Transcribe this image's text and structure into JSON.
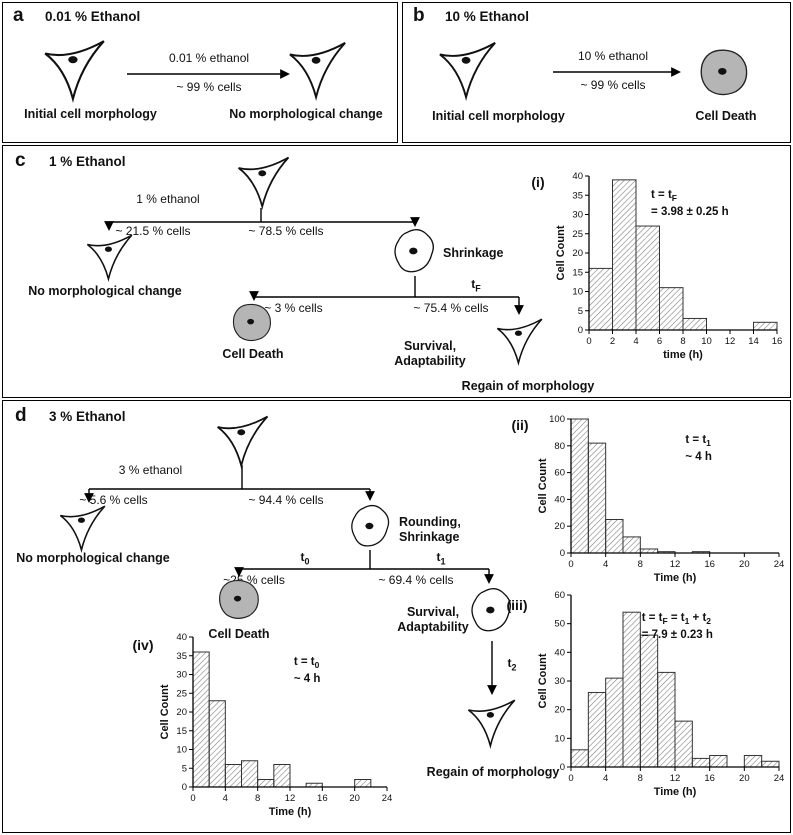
{
  "colors": {
    "dead_cell_fill": "#b5b5b5",
    "cell_outline": "#111111",
    "accent": "#000000"
  },
  "panels": {
    "a": {
      "label": "a",
      "title": "0.01 % Ethanol",
      "arrow_label_top": "0.01 % ethanol",
      "arrow_label_bottom": "~ 99 % cells",
      "caption_left": "Initial cell morphology",
      "caption_right": "No morphological change"
    },
    "b": {
      "label": "b",
      "title": "10 % Ethanol",
      "arrow_label_top": "10 % ethanol",
      "arrow_label_bottom": "~ 99 % cells",
      "caption_left": "Initial cell morphology",
      "caption_right": "Cell Death"
    },
    "c": {
      "label": "c",
      "title": "1 % Ethanol",
      "branch_label": "1 % ethanol",
      "left_pct": "~ 21.5 % cells",
      "right_pct": "~ 78.5 % cells",
      "caption_no_change": "No morphological change",
      "shrinkage_label": "Shrinkage",
      "tf": {
        "pre": "t",
        "sub": "F"
      },
      "death_pct": "~ 3 % cells",
      "survival_pct": "~ 75.4 % cells",
      "caption_death": "Cell Death",
      "survival_line1": "Survival,",
      "survival_line2": "Adaptability",
      "caption_regain": "Regain of morphology",
      "hist_tag": "(i)"
    },
    "d": {
      "label": "d",
      "title": "3 % Ethanol",
      "branch_label": "3 % ethanol",
      "left_pct": "~ 5.6 % cells",
      "right_pct": "~ 94.4 % cells",
      "caption_no_change": "No morphological change",
      "rounding_line1": "Rounding,",
      "rounding_line2": "Shrinkage",
      "t0": {
        "pre": "t",
        "sub": "0"
      },
      "t1": {
        "pre": "t",
        "sub": "1"
      },
      "t2": {
        "pre": "t",
        "sub": "2"
      },
      "death_pct": "~25 % cells",
      "survival_pct": "~ 69.4 % cells",
      "caption_death": "Cell Death",
      "survival_line1": "Survival,",
      "survival_line2": "Adaptability",
      "caption_regain": "Regain of morphology",
      "hist_tag_ii": "(ii)",
      "hist_tag_iii": "(iii)",
      "hist_tag_iv": "(iv)"
    }
  },
  "chart_data": [
    {
      "id": "i",
      "type": "bar",
      "xlabel": "time (h)",
      "ylabel": "Cell Count",
      "xlim": [
        0,
        16
      ],
      "xtick_step": 2,
      "ylim": [
        0,
        40
      ],
      "ytick_step": 5,
      "bin_width": 2,
      "bin_starts": [
        0,
        2,
        4,
        6,
        8,
        10,
        12,
        14
      ],
      "values": [
        16,
        39,
        27,
        11,
        3,
        0,
        0,
        2
      ],
      "ann_x": 0.33,
      "ann_y": 22,
      "annotation": [
        [
          {
            "t": "t = t"
          },
          {
            "t": "F",
            "sub": true
          }
        ],
        [
          {
            "t": "= 3.98 ± 0.25 h"
          }
        ]
      ]
    },
    {
      "id": "ii",
      "type": "bar",
      "xlabel": "Time (h)",
      "ylabel": "Cell Count",
      "xlim": [
        0,
        24
      ],
      "xtick_step": 4,
      "ylim": [
        0,
        100
      ],
      "ytick_step": 20,
      "bin_width": 2,
      "bin_starts": [
        0,
        2,
        4,
        6,
        8,
        10,
        12,
        14,
        16,
        18,
        20,
        22
      ],
      "values": [
        100,
        82,
        25,
        12,
        3,
        1,
        0,
        1,
        0,
        0,
        0,
        0
      ],
      "ann_x": 0.55,
      "ann_y": 24,
      "annotation": [
        [
          {
            "t": "t = t"
          },
          {
            "t": "1",
            "sub": true
          }
        ],
        [
          {
            "t": "~ 4 h"
          }
        ]
      ]
    },
    {
      "id": "iii",
      "type": "bar",
      "xlabel": "Time (h)",
      "ylabel": "Cell Count",
      "xlim": [
        0,
        24
      ],
      "xtick_step": 4,
      "ylim": [
        0,
        60
      ],
      "ytick_step": 10,
      "bin_width": 2,
      "bin_starts": [
        0,
        2,
        4,
        6,
        8,
        10,
        12,
        14,
        16,
        18,
        20,
        22
      ],
      "values": [
        6,
        26,
        31,
        54,
        46,
        33,
        16,
        3,
        4,
        0,
        4,
        2
      ],
      "ann_x": 0.34,
      "ann_y": 26,
      "annotation": [
        [
          {
            "t": "t = t"
          },
          {
            "t": "F",
            "sub": true
          },
          {
            "t": " = t"
          },
          {
            "t": "1",
            "sub": true
          },
          {
            "t": " + t"
          },
          {
            "t": "2",
            "sub": true
          }
        ],
        [
          {
            "t": "= 7.9 ± 0.23 h"
          }
        ]
      ]
    },
    {
      "id": "iv",
      "type": "bar",
      "xlabel": "Time (h)",
      "ylabel": "Cell Count",
      "xlim": [
        0,
        24
      ],
      "xtick_step": 4,
      "ylim": [
        0,
        40
      ],
      "ytick_step": 5,
      "bin_width": 2,
      "bin_starts": [
        0,
        2,
        4,
        6,
        8,
        10,
        12,
        14,
        16,
        18,
        20,
        22
      ],
      "values": [
        36,
        23,
        6,
        7,
        2,
        6,
        0,
        1,
        0,
        0,
        2,
        0
      ],
      "ann_x": 0.52,
      "ann_y": 28,
      "annotation": [
        [
          {
            "t": "t = t"
          },
          {
            "t": "0",
            "sub": true
          }
        ],
        [
          {
            "t": "~ 4 h"
          }
        ]
      ]
    }
  ]
}
